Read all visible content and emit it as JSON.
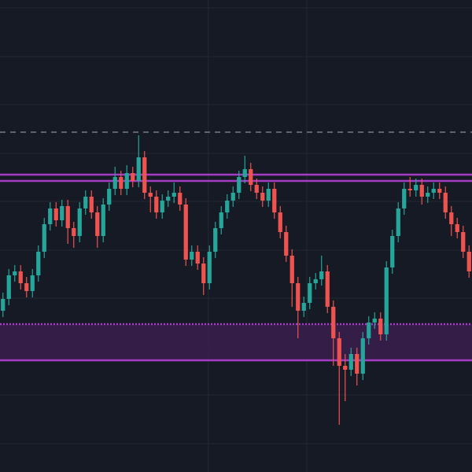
{
  "chart_data": {
    "type": "candlestick",
    "ylim": [
      0,
      600
    ],
    "yticks": [
      590,
      528,
      467,
      405,
      344,
      282,
      221,
      159,
      98,
      36
    ],
    "xlim": [
      -0.5,
      79.5
    ],
    "xticks": [
      34.8,
      51.5
    ],
    "grid": true,
    "background": "#161a25",
    "grid_color": "#242833",
    "up_color": "#26a69a",
    "down_color": "#ef5350",
    "open": [
      205,
      220,
      250,
      255,
      240,
      230,
      250,
      280,
      315,
      335,
      320,
      338,
      310,
      300,
      335,
      350,
      330,
      300,
      340,
      360,
      375,
      360,
      380,
      370,
      400,
      355,
      350,
      330,
      345,
      350,
      355,
      340,
      270,
      280,
      265,
      240,
      280,
      310,
      330,
      345,
      355,
      375,
      385,
      365,
      355,
      345,
      360,
      330,
      305,
      275,
      240,
      205,
      215,
      240,
      245,
      255,
      210,
      170,
      135,
      130,
      150,
      125,
      170,
      190,
      195,
      175,
      260,
      300,
      335,
      360,
      358,
      365,
      350,
      355,
      360,
      355,
      330,
      315,
      305,
      280
    ],
    "high": [
      228,
      258,
      263,
      263,
      248,
      258,
      288,
      323,
      343,
      343,
      346,
      346,
      318,
      343,
      358,
      358,
      338,
      348,
      368,
      388,
      383,
      390,
      388,
      428,
      408,
      363,
      358,
      353,
      358,
      368,
      363,
      348,
      288,
      288,
      273,
      288,
      318,
      338,
      353,
      363,
      383,
      402,
      393,
      373,
      363,
      368,
      368,
      338,
      313,
      283,
      248,
      223,
      248,
      253,
      275,
      263,
      218,
      178,
      150,
      158,
      158,
      178,
      198,
      203,
      203,
      268,
      308,
      343,
      368,
      375,
      373,
      373,
      363,
      368,
      368,
      363,
      338,
      323,
      313,
      288
    ],
    "low": [
      197,
      212,
      242,
      232,
      222,
      222,
      242,
      272,
      307,
      312,
      312,
      290,
      285,
      292,
      327,
      322,
      285,
      292,
      332,
      352,
      352,
      352,
      362,
      362,
      347,
      330,
      322,
      322,
      337,
      342,
      332,
      262,
      262,
      257,
      225,
      232,
      272,
      302,
      322,
      337,
      347,
      367,
      357,
      347,
      337,
      337,
      322,
      297,
      267,
      210,
      170,
      197,
      207,
      232,
      237,
      202,
      135,
      60,
      90,
      122,
      110,
      117,
      162,
      182,
      167,
      167,
      252,
      292,
      327,
      350,
      350,
      340,
      342,
      347,
      347,
      322,
      300,
      297,
      272,
      247
    ],
    "close": [
      220,
      250,
      255,
      240,
      230,
      250,
      280,
      315,
      335,
      320,
      338,
      310,
      300,
      335,
      350,
      330,
      300,
      340,
      360,
      375,
      360,
      380,
      370,
      400,
      355,
      350,
      330,
      345,
      350,
      355,
      340,
      270,
      280,
      265,
      240,
      280,
      310,
      330,
      345,
      355,
      375,
      385,
      365,
      355,
      345,
      360,
      330,
      305,
      275,
      240,
      205,
      215,
      240,
      245,
      255,
      210,
      170,
      135,
      130,
      150,
      125,
      170,
      190,
      195,
      175,
      260,
      300,
      335,
      360,
      358,
      365,
      350,
      355,
      360,
      355,
      330,
      315,
      305,
      280,
      255
    ],
    "levels": [
      {
        "value": 432,
        "style": "dashed",
        "color": "#8a8e99"
      },
      {
        "value": 378,
        "style": "solid",
        "color": "#a43cc4"
      },
      {
        "value": 370,
        "style": "solid",
        "color": "#a43cc4"
      },
      {
        "value": 188,
        "style": "dotted",
        "color": "#a43cc4"
      },
      {
        "value": 142,
        "style": "solid",
        "color": "#a43cc4"
      }
    ],
    "zone": {
      "from": 142,
      "to": 188,
      "color": "#3a1f4c"
    }
  }
}
